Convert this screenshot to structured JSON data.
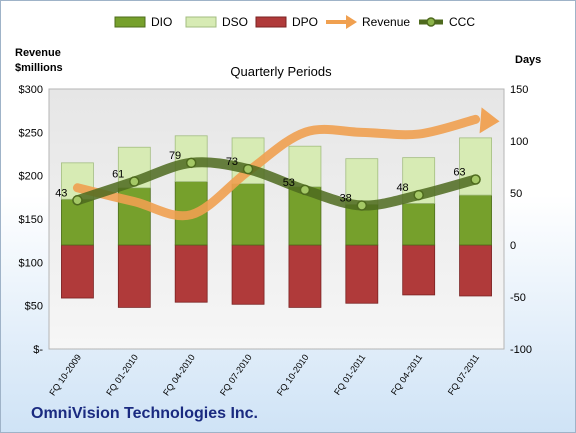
{
  "chart_data": {
    "type": "bar",
    "title": "Quarterly Periods",
    "company": "OmniVision Technologies Inc.",
    "categories": [
      "FQ 10-2009",
      "FQ 01-2010",
      "FQ 04-2010",
      "FQ 07-2010",
      "FQ 10-2010",
      "FQ 01-2011",
      "FQ 04-2011",
      "FQ 07-2011"
    ],
    "left_axis": {
      "title_line1": "Revenue",
      "title_line2": "$millions",
      "ylim": [
        0,
        300
      ],
      "ticks": [
        "$-",
        "$50",
        "$100",
        "$150",
        "$200",
        "$250",
        "$300"
      ]
    },
    "right_axis": {
      "title": "Days",
      "ylim": [
        -100,
        150
      ],
      "ticks": [
        "-100",
        "-50",
        "0",
        "50",
        "100",
        "150"
      ]
    },
    "series": [
      {
        "name": "DIO",
        "axis": "right",
        "kind": "bar-positive",
        "color": "#76a02c",
        "values": [
          44,
          55,
          61,
          59,
          56,
          39,
          40,
          48
        ]
      },
      {
        "name": "DSO",
        "axis": "right",
        "kind": "bar-positive-stacked",
        "color": "#d7ebb4",
        "values": [
          35,
          39,
          44,
          44,
          39,
          44,
          44,
          55
        ]
      },
      {
        "name": "DPO",
        "axis": "right",
        "kind": "bar-negative",
        "color": "#b03a3a",
        "values": [
          -51,
          -60,
          -55,
          -57,
          -60,
          -56,
          -48,
          -49
        ]
      },
      {
        "name": "Revenue",
        "axis": "left",
        "kind": "line",
        "color": "#f0a050",
        "values": [
          186,
          170,
          155,
          205,
          250,
          250,
          248,
          265
        ]
      },
      {
        "name": "CCC",
        "axis": "right",
        "kind": "line-markers",
        "color": "#4e6a1e",
        "values": [
          43,
          61,
          79,
          73,
          53,
          38,
          48,
          63
        ],
        "labels": [
          "43",
          "61",
          "79",
          "73",
          "53",
          "38",
          "48",
          "63"
        ]
      }
    ],
    "legend_position": "top",
    "grid": false
  }
}
